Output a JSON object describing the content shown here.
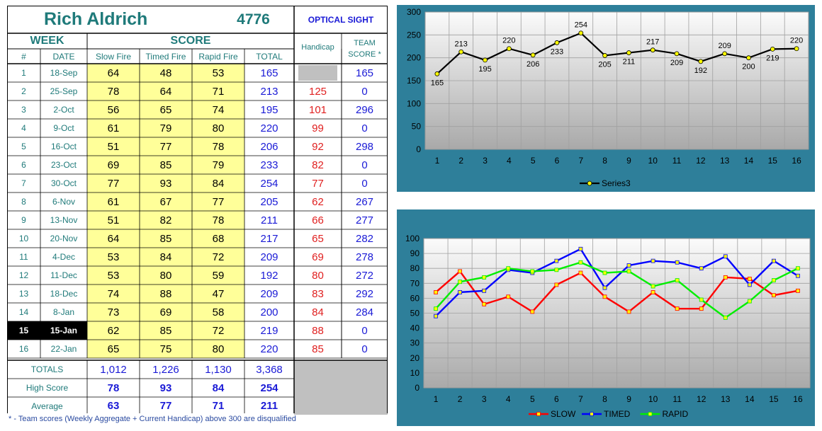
{
  "sheet": {
    "shooter_name": "Rich Aldrich",
    "shooter_id": "4776",
    "sight_type": "OPTICAL SIGHT",
    "week_header": "WEEK",
    "score_header": "SCORE",
    "handicap_header": "Handicap",
    "team_score_header_line1": "TEAM",
    "team_score_header_line2": "SCORE *",
    "columns": {
      "num": "#",
      "date": "DATE",
      "slow": "Slow Fire",
      "timed": "Timed Fire",
      "rapid": "Rapid Fire",
      "total": "TOTAL"
    },
    "rows": [
      {
        "num": "1",
        "date": "18-Sep",
        "slow": "64",
        "timed": "48",
        "rapid": "53",
        "total": "165",
        "handicap": "",
        "team": "165"
      },
      {
        "num": "2",
        "date": "25-Sep",
        "slow": "78",
        "timed": "64",
        "rapid": "71",
        "total": "213",
        "handicap": "125",
        "team": "0"
      },
      {
        "num": "3",
        "date": "2-Oct",
        "slow": "56",
        "timed": "65",
        "rapid": "74",
        "total": "195",
        "handicap": "101",
        "team": "296"
      },
      {
        "num": "4",
        "date": "9-Oct",
        "slow": "61",
        "timed": "79",
        "rapid": "80",
        "total": "220",
        "handicap": "99",
        "team": "0"
      },
      {
        "num": "5",
        "date": "16-Oct",
        "slow": "51",
        "timed": "77",
        "rapid": "78",
        "total": "206",
        "handicap": "92",
        "team": "298"
      },
      {
        "num": "6",
        "date": "23-Oct",
        "slow": "69",
        "timed": "85",
        "rapid": "79",
        "total": "233",
        "handicap": "82",
        "team": "0"
      },
      {
        "num": "7",
        "date": "30-Oct",
        "slow": "77",
        "timed": "93",
        "rapid": "84",
        "total": "254",
        "handicap": "77",
        "team": "0"
      },
      {
        "num": "8",
        "date": "6-Nov",
        "slow": "61",
        "timed": "67",
        "rapid": "77",
        "total": "205",
        "handicap": "62",
        "team": "267"
      },
      {
        "num": "9",
        "date": "13-Nov",
        "slow": "51",
        "timed": "82",
        "rapid": "78",
        "total": "211",
        "handicap": "66",
        "team": "277"
      },
      {
        "num": "10",
        "date": "20-Nov",
        "slow": "64",
        "timed": "85",
        "rapid": "68",
        "total": "217",
        "handicap": "65",
        "team": "282"
      },
      {
        "num": "11",
        "date": "4-Dec",
        "slow": "53",
        "timed": "84",
        "rapid": "72",
        "total": "209",
        "handicap": "69",
        "team": "278"
      },
      {
        "num": "12",
        "date": "11-Dec",
        "slow": "53",
        "timed": "80",
        "rapid": "59",
        "total": "192",
        "handicap": "80",
        "team": "272"
      },
      {
        "num": "13",
        "date": "18-Dec",
        "slow": "74",
        "timed": "88",
        "rapid": "47",
        "total": "209",
        "handicap": "83",
        "team": "292"
      },
      {
        "num": "14",
        "date": "8-Jan",
        "slow": "73",
        "timed": "69",
        "rapid": "58",
        "total": "200",
        "handicap": "84",
        "team": "284"
      },
      {
        "num": "15",
        "date": "15-Jan",
        "slow": "62",
        "timed": "85",
        "rapid": "72",
        "total": "219",
        "handicap": "88",
        "team": "0",
        "current": true
      },
      {
        "num": "16",
        "date": "22-Jan",
        "slow": "65",
        "timed": "75",
        "rapid": "80",
        "total": "220",
        "handicap": "85",
        "team": "0"
      }
    ],
    "summary": [
      {
        "label": "TOTALS",
        "slow": "1,012",
        "timed": "1,226",
        "rapid": "1,130",
        "total": "3,368",
        "bold": false
      },
      {
        "label": "High Score",
        "slow": "78",
        "timed": "93",
        "rapid": "84",
        "total": "254",
        "bold": true
      },
      {
        "label": "Average",
        "slow": "63",
        "timed": "77",
        "rapid": "71",
        "total": "211",
        "bold": true
      }
    ],
    "footnote": "* - Team scores (Weekly Aggregate + Current Handicap) above 300 are disqualified"
  },
  "colors": {
    "teal_text": "#1f7a7a",
    "blue_text": "#1a1ad6",
    "red_text": "#e02020",
    "score_fill": "#ffff99",
    "grey_fill": "#c0c0c0",
    "chart_frame": "#2e7f9a",
    "slow_line": "#ff0000",
    "timed_line": "#0000ff",
    "rapid_line": "#00ee00",
    "marker_fill": "#ffff00"
  },
  "chart_data": [
    {
      "type": "line",
      "x": [
        1,
        2,
        3,
        4,
        5,
        6,
        7,
        8,
        9,
        10,
        11,
        12,
        13,
        14,
        15,
        16
      ],
      "series": [
        {
          "name": "Series3",
          "values": [
            165,
            213,
            195,
            220,
            206,
            233,
            254,
            205,
            211,
            217,
            209,
            192,
            209,
            200,
            219,
            220
          ]
        }
      ],
      "data_labels": true,
      "ylim": [
        0,
        300
      ],
      "yticks": [
        0,
        50,
        100,
        150,
        200,
        250,
        300
      ],
      "grid": true,
      "legend": "bottom"
    },
    {
      "type": "line",
      "x": [
        1,
        2,
        3,
        4,
        5,
        6,
        7,
        8,
        9,
        10,
        11,
        12,
        13,
        14,
        15,
        16
      ],
      "series": [
        {
          "name": "SLOW",
          "values": [
            64,
            78,
            56,
            61,
            51,
            69,
            77,
            61,
            51,
            64,
            53,
            53,
            74,
            73,
            62,
            65
          ]
        },
        {
          "name": "TIMED",
          "values": [
            48,
            64,
            65,
            79,
            77,
            85,
            93,
            67,
            82,
            85,
            84,
            80,
            88,
            69,
            85,
            75
          ]
        },
        {
          "name": "RAPID",
          "values": [
            53,
            71,
            74,
            80,
            78,
            79,
            84,
            77,
            78,
            68,
            72,
            59,
            47,
            58,
            72,
            80
          ]
        }
      ],
      "ylim": [
        0,
        100
      ],
      "yticks": [
        0,
        10,
        20,
        30,
        40,
        50,
        60,
        70,
        80,
        90,
        100
      ],
      "grid": true,
      "legend": "bottom"
    }
  ]
}
